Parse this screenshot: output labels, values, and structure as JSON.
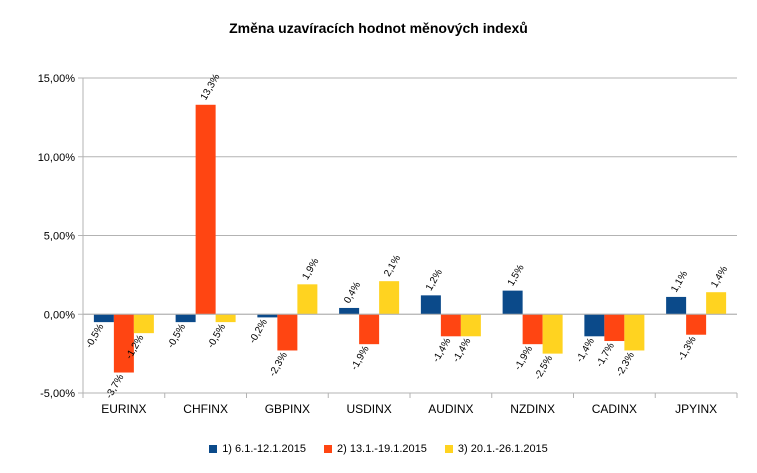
{
  "chart_data": {
    "type": "bar",
    "title": "Změna uzavíracích hodnot měnových indexů",
    "categories": [
      "EURINX",
      "CHFINX",
      "GBPINX",
      "USDINX",
      "AUDINX",
      "NZDINX",
      "CADINX",
      "JPYINX"
    ],
    "series": [
      {
        "name": "1) 6.1.-12.1.2015",
        "color": "#0b4a8a",
        "values": [
          -0.5,
          -0.5,
          -0.2,
          0.4,
          1.2,
          1.5,
          -1.4,
          1.1
        ],
        "labels": [
          "-0,5%",
          "-0,5%",
          "-0,2%",
          "0,4%",
          "1,2%",
          "1,5%",
          "-1,4%",
          "1,1%"
        ]
      },
      {
        "name": "2) 13.1.-19.1.2015",
        "color": "#ff4512",
        "values": [
          -3.7,
          13.3,
          -2.3,
          -1.9,
          -1.4,
          -1.9,
          -1.7,
          -1.3
        ],
        "labels": [
          "-3,7%",
          "13,3%",
          "-2,3%",
          "-1,9%",
          "-1,4%",
          "-1,9%",
          "-1,7%",
          "-1,3%"
        ]
      },
      {
        "name": "3) 20.1.-26.1.2015",
        "color": "#ffd320",
        "values": [
          -1.2,
          -0.5,
          1.9,
          2.1,
          -1.4,
          -2.5,
          -2.3,
          1.4
        ],
        "labels": [
          "-1,2%",
          "-0,5%",
          "1,9%",
          "2,1%",
          "-1,4%",
          "-2,5%",
          "-2,3%",
          "1,4%"
        ]
      }
    ],
    "yticks": [
      -5,
      0,
      5,
      10,
      15
    ],
    "ytick_labels": [
      "-5,00%",
      "0,00%",
      "5,00%",
      "10,00%",
      "15,00%"
    ],
    "ylim": [
      -5,
      15
    ],
    "grid": true,
    "legend_position": "bottom"
  }
}
